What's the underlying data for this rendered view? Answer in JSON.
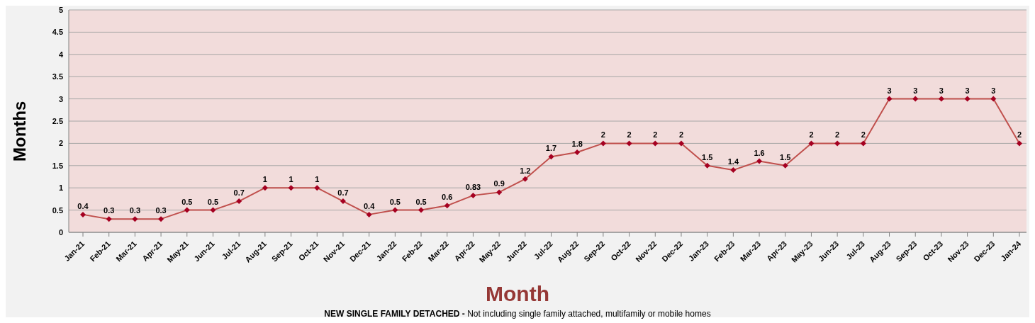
{
  "chart_data": {
    "type": "line",
    "xlabel": "Month",
    "ylabel": "Months",
    "annotations": [
      "NEW SINGLE FAMILY DETACHED -",
      "Not including single family attached, multifamily or mobile homes"
    ],
    "categories": [
      "Jan-21",
      "Feb-21",
      "Mar-21",
      "Apr-21",
      "May-21",
      "Jun-21",
      "Jul-21",
      "Aug-21",
      "Sep-21",
      "Oct-21",
      "Nov-21",
      "Dec-21",
      "Jan-22",
      "Feb-22",
      "Mar-22",
      "Apr-22",
      "May-22",
      "Jun-22",
      "Jul-22",
      "Aug-22",
      "Sep-22",
      "Oct-22",
      "Nov-22",
      "Dec-22",
      "Jan-23",
      "Feb-23",
      "Mar-23",
      "Apr-23",
      "May-23",
      "Jun-23",
      "Jul-23",
      "Aug-23",
      "Sep-23",
      "Oct-23",
      "Nov-23",
      "Dec-23",
      "Jan-24"
    ],
    "series": [
      {
        "color": "#c0504d",
        "values": [
          0.4,
          0.3,
          0.3,
          0.3,
          0.5,
          0.5,
          0.7,
          1,
          1,
          1,
          0.7,
          0.4,
          0.5,
          0.5,
          0.6,
          0.83,
          0.9,
          1.2,
          1.7,
          1.8,
          2,
          2,
          2,
          2,
          1.5,
          1.4,
          1.6,
          1.5,
          2,
          2,
          2,
          3,
          3,
          3,
          3,
          3,
          2
        ]
      }
    ],
    "ylim": [
      0,
      5
    ],
    "yticks": [
      0,
      0.5,
      1,
      1.5,
      2,
      2.5,
      3,
      3.5,
      4,
      4.5,
      5
    ],
    "grid": "y",
    "legend": false,
    "data_labels": true,
    "marker": "diamond",
    "line_style": "solid"
  }
}
